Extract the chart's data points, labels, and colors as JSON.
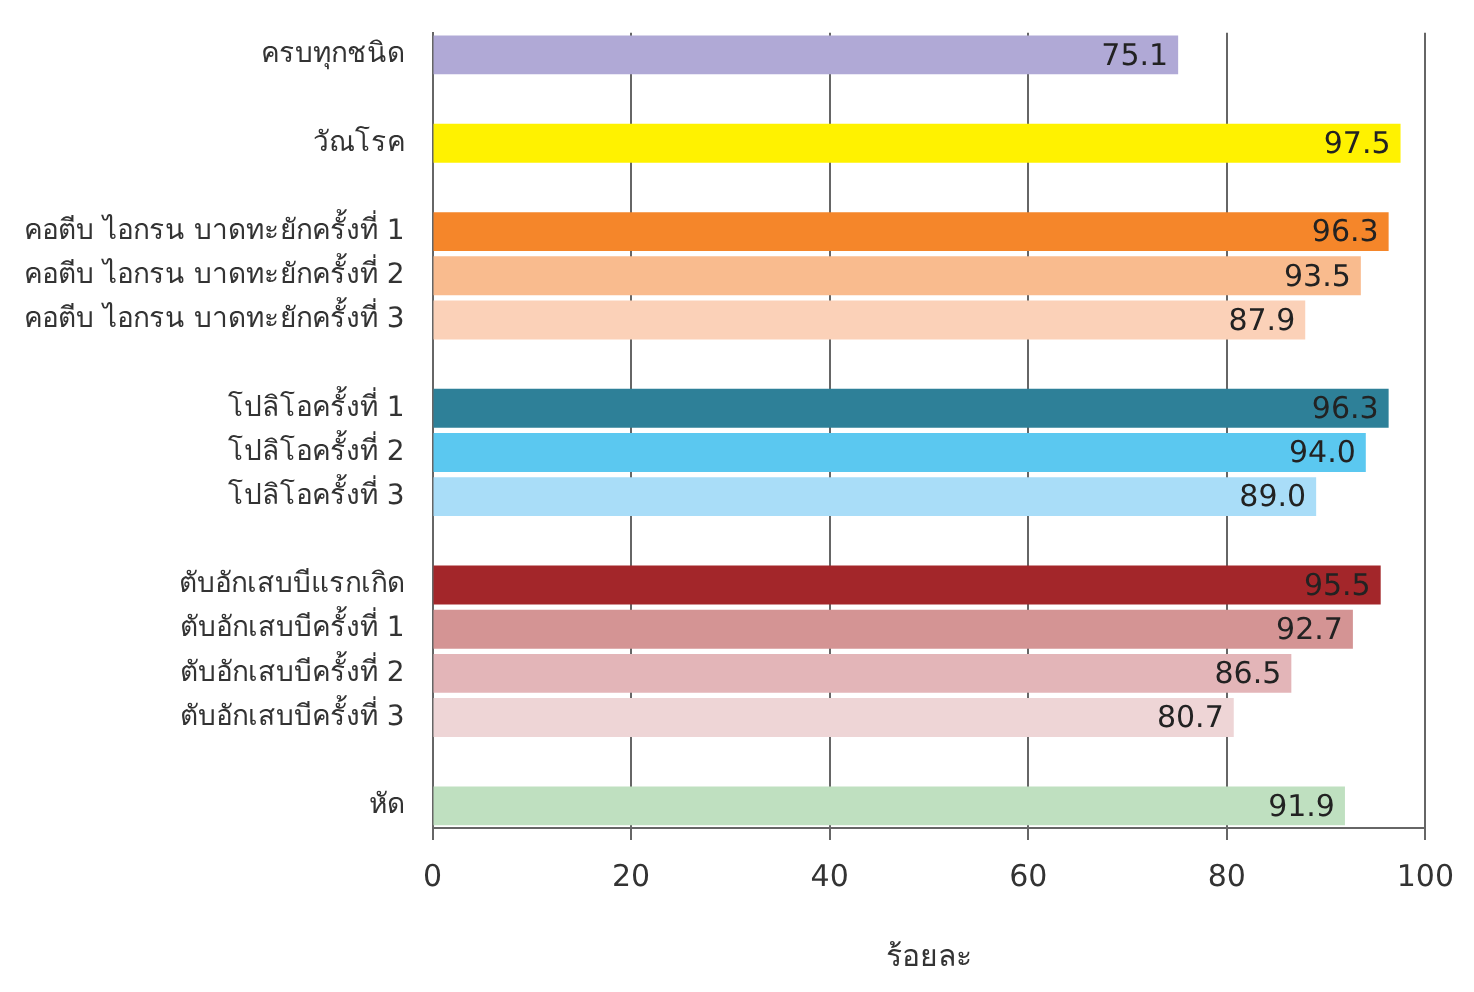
{
  "chart_data": {
    "type": "bar",
    "orientation": "horizontal",
    "xlabel": "ร้อยละ",
    "categories": [
      "ครบทุกชนิด",
      null,
      "วัณโรค",
      null,
      "คอตีบ ไอกรน บาดทะยักครั้งที่ 1",
      "คอตีบ ไอกรน บาดทะยักครั้งที่ 2",
      "คอตีบ ไอกรน บาดทะยักครั้งที่ 3",
      null,
      "โปลิโอครั้งที่ 1",
      "โปลิโอครั้งที่ 2",
      "โปลิโอครั้งที่ 3",
      null,
      "ตับอักเสบบีแรกเกิด",
      "ตับอักเสบบีครั้งที่ 1",
      "ตับอักเสบบีครั้งที่ 2",
      "ตับอักเสบบีครั้งที่ 3",
      null,
      "หัด"
    ],
    "values": [
      75.1,
      null,
      97.5,
      null,
      96.3,
      93.5,
      87.9,
      null,
      96.3,
      94.0,
      89.0,
      null,
      95.5,
      92.7,
      86.5,
      80.7,
      null,
      91.9
    ],
    "value_labels": [
      "75.1",
      null,
      "97.5",
      null,
      "96.3",
      "93.5",
      "87.9",
      null,
      "96.3",
      "94.0",
      "89.0",
      null,
      "95.5",
      "92.7",
      "86.5",
      "80.7",
      null,
      "91.9"
    ],
    "colors": [
      "#b0a9d6",
      null,
      "#fff200",
      null,
      "#f5862a",
      "#f9bb8e",
      "#fbd1b8",
      null,
      "#2e8098",
      "#5bc8f0",
      "#a9ddf8",
      null,
      "#a3262a",
      "#d49494",
      "#e3b5b8",
      "#eed5d6",
      null,
      "#bfe0c0"
    ],
    "xlim": [
      0,
      100
    ],
    "xticks": [
      0,
      20,
      40,
      60,
      80,
      100
    ],
    "grid": "x"
  }
}
